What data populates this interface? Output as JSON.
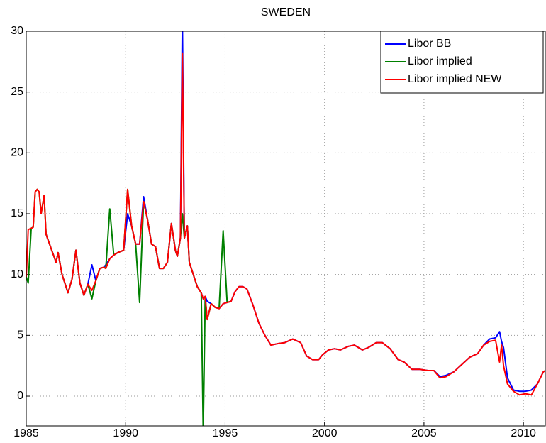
{
  "chart_data": {
    "type": "line",
    "title": "SWEDEN",
    "x": [
      1985.0,
      1985.1,
      1985.25,
      1985.35,
      1985.45,
      1985.55,
      1985.65,
      1985.75,
      1985.9,
      1986.0,
      1986.3,
      1986.5,
      1986.6,
      1986.8,
      1987.0,
      1987.1,
      1987.3,
      1987.5,
      1987.7,
      1987.9,
      1988.1,
      1988.3,
      1988.5,
      1988.7,
      1988.9,
      1989.0,
      1989.2,
      1989.4,
      1989.6,
      1989.9,
      1990.1,
      1990.3,
      1990.5,
      1990.7,
      1990.9,
      1991.1,
      1991.3,
      1991.5,
      1991.7,
      1991.9,
      1992.1,
      1992.3,
      1992.5,
      1992.6,
      1992.75,
      1992.85,
      1992.95,
      1993.1,
      1993.2,
      1993.4,
      1993.6,
      1993.8,
      1993.9,
      1994.0,
      1994.1,
      1994.3,
      1994.5,
      1994.7,
      1994.9,
      1995.1,
      1995.3,
      1995.5,
      1995.7,
      1995.9,
      1996.1,
      1996.4,
      1996.7,
      1997.0,
      1997.3,
      1997.6,
      1998.0,
      1998.4,
      1998.8,
      1999.1,
      1999.4,
      1999.7,
      1999.9,
      2000.2,
      2000.5,
      2000.8,
      2001.2,
      2001.5,
      2001.9,
      2002.2,
      2002.6,
      2002.9,
      2003.3,
      2003.7,
      2004.0,
      2004.4,
      2004.8,
      2005.2,
      2005.5,
      2005.8,
      2006.1,
      2006.5,
      2006.9,
      2007.3,
      2007.7,
      2008.0,
      2008.3,
      2008.6,
      2008.8,
      2008.9,
      2009.0,
      2009.2,
      2009.5,
      2009.8,
      2010.1,
      2010.4,
      2010.7,
      2011.0,
      2011.1
    ],
    "series": [
      {
        "name": "Libor BB",
        "color": "#0000ff",
        "values": [
          null,
          null,
          null,
          null,
          null,
          null,
          null,
          null,
          null,
          13.3,
          11.9,
          11.0,
          11.8,
          10.0,
          9.0,
          8.5,
          9.6,
          12.0,
          9.3,
          8.3,
          9.2,
          10.8,
          9.5,
          10.5,
          10.6,
          10.8,
          11.3,
          11.6,
          11.8,
          12.0,
          15.0,
          14.0,
          12.5,
          12.5,
          16.4,
          14.5,
          12.5,
          12.3,
          10.5,
          10.5,
          11.0,
          14.2,
          12.0,
          11.5,
          13.0,
          31.0,
          13.0,
          14.0,
          11.0,
          10.0,
          9.0,
          8.5,
          8.0,
          8.2,
          7.8,
          7.6,
          7.3,
          7.2,
          7.6,
          7.7,
          7.8,
          8.6,
          9.0,
          9.0,
          8.8,
          7.5,
          6.0,
          5.0,
          4.2,
          4.3,
          4.4,
          4.7,
          4.4,
          3.3,
          3.0,
          3.0,
          3.4,
          3.8,
          3.9,
          3.8,
          4.1,
          4.2,
          3.8,
          4.0,
          4.4,
          4.4,
          3.9,
          3.0,
          2.8,
          2.2,
          2.2,
          2.1,
          2.1,
          1.6,
          1.7,
          2.0,
          2.6,
          3.2,
          3.5,
          4.2,
          4.7,
          4.8,
          5.3,
          4.5,
          4.0,
          1.5,
          0.5,
          0.4,
          0.4,
          0.5,
          1.0,
          2.0,
          2.1
        ]
      },
      {
        "name": "Libor implied",
        "color": "#008000",
        "values": [
          9.8,
          9.3,
          13.8,
          13.9,
          16.8,
          17.0,
          16.8,
          15.0,
          16.5,
          13.3,
          11.9,
          11.0,
          11.8,
          10.0,
          9.0,
          8.5,
          9.6,
          12.0,
          9.3,
          8.3,
          9.2,
          8.0,
          9.5,
          10.5,
          10.6,
          10.5,
          15.4,
          11.6,
          11.8,
          12.0,
          17.0,
          14.0,
          12.5,
          7.7,
          16.0,
          14.5,
          12.5,
          12.3,
          10.5,
          10.5,
          11.0,
          14.2,
          12.0,
          11.5,
          13.0,
          15.0,
          13.0,
          14.0,
          11.0,
          10.0,
          9.0,
          8.5,
          -3.0,
          8.2,
          6.3,
          7.6,
          7.3,
          7.2,
          13.6,
          7.7,
          7.8,
          null,
          null,
          null,
          null,
          null,
          null,
          null,
          null,
          null,
          null,
          null,
          null,
          null,
          null,
          null,
          null,
          null,
          null,
          null,
          null,
          null,
          null,
          null,
          null,
          null,
          null,
          null,
          null,
          null,
          null,
          null,
          null,
          null,
          null,
          null,
          null,
          null,
          null,
          null,
          null,
          null,
          null,
          null,
          null,
          null,
          null,
          null,
          null,
          null,
          null,
          null,
          null
        ]
      },
      {
        "name": "Libor implied NEW",
        "color": "#ff0000",
        "values": [
          9.8,
          13.7,
          13.8,
          13.9,
          16.8,
          17.0,
          16.8,
          15.0,
          16.5,
          13.3,
          11.9,
          11.0,
          11.8,
          10.0,
          9.0,
          8.5,
          9.6,
          12.0,
          9.3,
          8.3,
          9.2,
          8.7,
          9.5,
          10.5,
          10.6,
          10.5,
          11.3,
          11.6,
          11.8,
          12.0,
          17.0,
          14.0,
          12.5,
          12.5,
          16.0,
          14.5,
          12.5,
          12.3,
          10.5,
          10.5,
          11.0,
          14.2,
          12.0,
          11.5,
          13.0,
          28.2,
          13.0,
          14.0,
          11.0,
          10.0,
          9.0,
          8.5,
          8.0,
          8.2,
          6.3,
          7.6,
          7.3,
          7.2,
          7.6,
          7.7,
          7.8,
          8.6,
          9.0,
          9.0,
          8.8,
          7.5,
          6.0,
          5.0,
          4.2,
          4.3,
          4.4,
          4.7,
          4.4,
          3.3,
          3.0,
          3.0,
          3.4,
          3.8,
          3.9,
          3.8,
          4.1,
          4.2,
          3.8,
          4.0,
          4.4,
          4.4,
          3.9,
          3.0,
          2.8,
          2.2,
          2.2,
          2.1,
          2.1,
          1.5,
          1.6,
          2.0,
          2.6,
          3.2,
          3.5,
          4.2,
          4.5,
          4.6,
          2.8,
          4.2,
          2.5,
          1.0,
          0.4,
          0.1,
          0.2,
          0.1,
          1.0,
          2.0,
          2.1
        ]
      }
    ],
    "xlim": [
      1985,
      2011.1
    ],
    "xticks": [
      1985,
      1990,
      1995,
      2000,
      2005,
      2010
    ],
    "ylim": [
      -2.45,
      30
    ],
    "yticks": [
      0,
      5,
      10,
      15,
      20,
      25,
      30
    ],
    "grid": true,
    "legend": "top-right"
  }
}
